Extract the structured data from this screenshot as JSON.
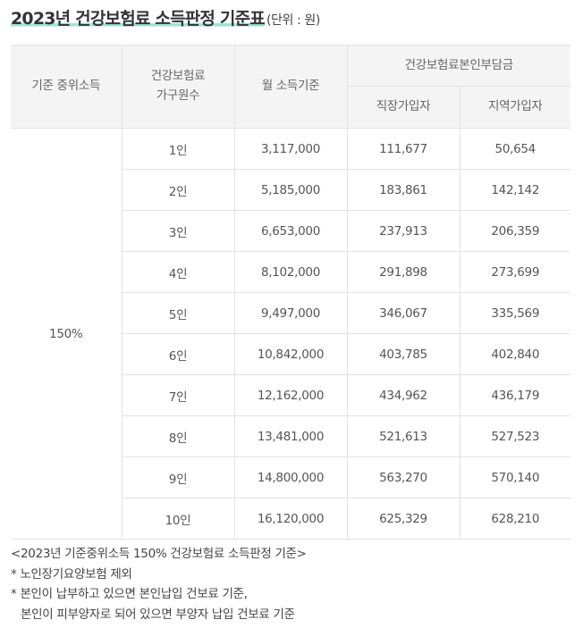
{
  "title": "2023년 건강보험료 소득판정 기준표",
  "unit": "(단위 : 원)",
  "headers": {
    "median_income": "기준 중위소득",
    "household_line1": "건강보험료",
    "household_line2": "가구원수",
    "monthly_income": "월 소득기준",
    "self_premium": "건강보험료본인부담금",
    "employee": "직장가입자",
    "regional": "지역가입자"
  },
  "median_value": "150%",
  "rows": [
    {
      "members": "1인",
      "income": "3,117,000",
      "employee": "111,677",
      "regional": "50,654"
    },
    {
      "members": "2인",
      "income": "5,185,000",
      "employee": "183,861",
      "regional": "142,142"
    },
    {
      "members": "3인",
      "income": "6,653,000",
      "employee": "237,913",
      "regional": "206,359"
    },
    {
      "members": "4인",
      "income": "8,102,000",
      "employee": "291,898",
      "regional": "273,699"
    },
    {
      "members": "5인",
      "income": "9,497,000",
      "employee": "346,067",
      "regional": "335,569"
    },
    {
      "members": "6인",
      "income": "10,842,000",
      "employee": "403,785",
      "regional": "402,840"
    },
    {
      "members": "7인",
      "income": "12,162,000",
      "employee": "434,962",
      "regional": "436,179"
    },
    {
      "members": "8인",
      "income": "13,481,000",
      "employee": "521,613",
      "regional": "527,523"
    },
    {
      "members": "9인",
      "income": "14,800,000",
      "employee": "563,270",
      "regional": "570,140"
    },
    {
      "members": "10인",
      "income": "16,120,000",
      "employee": "625,329",
      "regional": "628,210"
    }
  ],
  "notes": [
    "<2023년 기준중위소득 150% 건강보험료 소득판정 기준>",
    "* 노인장기요양보험 제외",
    "* 본인이 납부하고 있으면 본인납입 건보료 기준,",
    "본인이 피부양자로 되어 있으면 부양자 납입 건보료 기준"
  ],
  "colors": {
    "title_highlight": "#9ae6d6",
    "header_bg": "#f4f4f4",
    "border": "#e2e2e2"
  }
}
